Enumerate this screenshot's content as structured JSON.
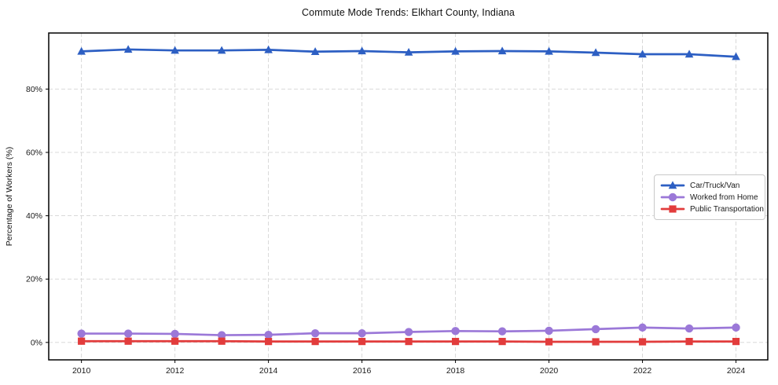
{
  "chart_data": {
    "type": "line",
    "title": "Commute Mode Trends: Elkhart County, Indiana",
    "xlabel": "",
    "ylabel": "Percentage of Workers (%)",
    "x": [
      2010,
      2011,
      2012,
      2013,
      2014,
      2015,
      2016,
      2017,
      2018,
      2019,
      2020,
      2021,
      2022,
      2023,
      2024
    ],
    "series": [
      {
        "name": "Car/Truck/Van",
        "color": "#2d5fc3",
        "marker": "triangle",
        "values": [
          91.9,
          92.5,
          92.2,
          92.2,
          92.4,
          91.8,
          92.0,
          91.6,
          91.9,
          92.0,
          91.9,
          91.5,
          91.0,
          91.0,
          90.2
        ]
      },
      {
        "name": "Worked from Home",
        "color": "#9b78d8",
        "marker": "circle",
        "values": [
          2.8,
          2.8,
          2.7,
          2.3,
          2.4,
          2.9,
          2.9,
          3.3,
          3.6,
          3.5,
          3.7,
          4.2,
          4.7,
          4.4,
          4.7
        ]
      },
      {
        "name": "Public Transportation",
        "color": "#e23c3c",
        "marker": "square",
        "values": [
          0.4,
          0.4,
          0.4,
          0.4,
          0.3,
          0.3,
          0.3,
          0.3,
          0.3,
          0.3,
          0.2,
          0.2,
          0.2,
          0.3,
          0.3
        ]
      }
    ],
    "xticks": {
      "values": [
        2010,
        2012,
        2014,
        2016,
        2018,
        2020,
        2022,
        2024
      ],
      "labels": [
        "2010",
        "2012",
        "2014",
        "2016",
        "2018",
        "2020",
        "2022",
        "2024"
      ]
    },
    "yticks": {
      "values": [
        0,
        20,
        40,
        60,
        80
      ],
      "labels": [
        "0%",
        "20%",
        "40%",
        "60%",
        "80%"
      ]
    },
    "xlim": [
      2009.3,
      2024.68
    ],
    "ylim": [
      -5.5,
      97.7
    ],
    "grid": true,
    "legend_position": "center right",
    "grid_color": "#d4d4d4",
    "spine_color": "#000000",
    "tick_label_color": "#1a1a1a"
  }
}
